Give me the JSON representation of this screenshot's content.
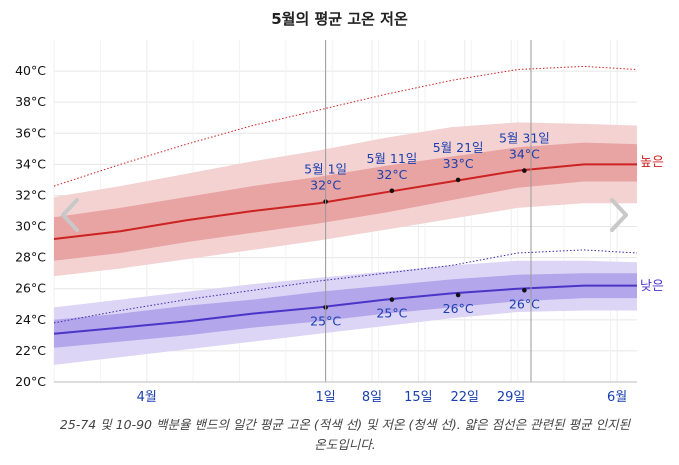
{
  "chart_data": {
    "type": "line",
    "title": "5월의 평균 고온 저온",
    "caption": "25-74 및 10-90 백분율 밴드의 일간 평균 고온 (적색 선) 및 저온 (청색 선). 얇은 점선은 관련된 평균 인지된 온도입니다.",
    "ylim": [
      20,
      42
    ],
    "yticks": [
      20,
      22,
      24,
      26,
      28,
      30,
      32,
      34,
      36,
      38,
      40
    ],
    "ytick_suffix": "°C",
    "xlim": [
      -40,
      48
    ],
    "xticks": [
      {
        "x": -26,
        "label": "4월"
      },
      {
        "x": 1,
        "label": "1일"
      },
      {
        "x": 8,
        "label": "8일"
      },
      {
        "x": 15,
        "label": "15일"
      },
      {
        "x": 22,
        "label": "22일"
      },
      {
        "x": 29,
        "label": "29일"
      },
      {
        "x": 45,
        "label": "6월"
      }
    ],
    "month_lines": [
      1,
      32
    ],
    "series": [
      {
        "name": "높은",
        "color": "#cc2222",
        "band_inner_color": "#e8a3a3",
        "band_outer_color": "#f4d2d2",
        "perceived_color": "#cc2222",
        "x": [
          -40,
          -30,
          -20,
          -10,
          0,
          10,
          20,
          30,
          40,
          48
        ],
        "mean": [
          29.2,
          29.7,
          30.4,
          31.0,
          31.5,
          32.2,
          32.9,
          33.6,
          34.0,
          34.0
        ],
        "p25": [
          27.8,
          28.3,
          29.0,
          29.6,
          30.2,
          30.9,
          31.7,
          32.5,
          32.9,
          32.9
        ],
        "p75": [
          30.6,
          31.2,
          31.9,
          32.6,
          33.2,
          33.9,
          34.5,
          35.1,
          35.4,
          35.3
        ],
        "p10": [
          26.8,
          27.3,
          27.9,
          28.5,
          29.1,
          29.8,
          30.5,
          31.2,
          31.5,
          31.5
        ],
        "p90": [
          31.9,
          32.6,
          33.4,
          34.2,
          34.9,
          35.7,
          36.4,
          36.7,
          36.6,
          36.5
        ],
        "perceived": [
          32.6,
          34.0,
          35.3,
          36.5,
          37.5,
          38.5,
          39.4,
          40.1,
          40.3,
          40.1
        ]
      },
      {
        "name": "낮은",
        "color": "#4b35c8",
        "band_inner_color": "#b3a6ea",
        "band_outer_color": "#dcd5f6",
        "perceived_color": "#3a2aa8",
        "x": [
          -40,
          -30,
          -20,
          -10,
          0,
          10,
          20,
          30,
          40,
          48
        ],
        "mean": [
          23.1,
          23.5,
          23.9,
          24.4,
          24.8,
          25.3,
          25.7,
          26.0,
          26.2,
          26.2
        ],
        "p25": [
          22.2,
          22.6,
          23.0,
          23.5,
          23.9,
          24.4,
          24.8,
          25.2,
          25.4,
          25.4
        ],
        "p75": [
          24.0,
          24.4,
          24.9,
          25.3,
          25.8,
          26.2,
          26.6,
          26.9,
          27.0,
          27.0
        ],
        "p10": [
          21.1,
          21.6,
          22.1,
          22.6,
          23.1,
          23.6,
          24.1,
          24.5,
          24.6,
          24.6
        ],
        "p90": [
          24.8,
          25.3,
          25.8,
          26.3,
          26.7,
          27.1,
          27.5,
          27.8,
          27.8,
          27.7
        ],
        "perceived": [
          23.8,
          24.6,
          25.3,
          25.9,
          26.5,
          27.0,
          27.5,
          28.3,
          28.5,
          28.3
        ]
      }
    ],
    "annotations_high": [
      {
        "day": 1,
        "date": "5월 1일",
        "value": "32°C",
        "temp": 31.6
      },
      {
        "day": 11,
        "date": "5월 11일",
        "value": "32°C",
        "temp": 32.3
      },
      {
        "day": 21,
        "date": "5월 21일",
        "value": "33°C",
        "temp": 33.0
      },
      {
        "day": 31,
        "date": "5월 31일",
        "value": "34°C",
        "temp": 33.6
      }
    ],
    "annotations_low": [
      {
        "day": 1,
        "value": "25°C",
        "temp": 24.8
      },
      {
        "day": 11,
        "value": "25°C",
        "temp": 25.3
      },
      {
        "day": 21,
        "value": "26°C",
        "temp": 25.6
      },
      {
        "day": 31,
        "value": "26°C",
        "temp": 25.9
      }
    ]
  },
  "nav": {
    "prev_icon": "chevron-left-icon",
    "next_icon": "chevron-right-icon"
  }
}
